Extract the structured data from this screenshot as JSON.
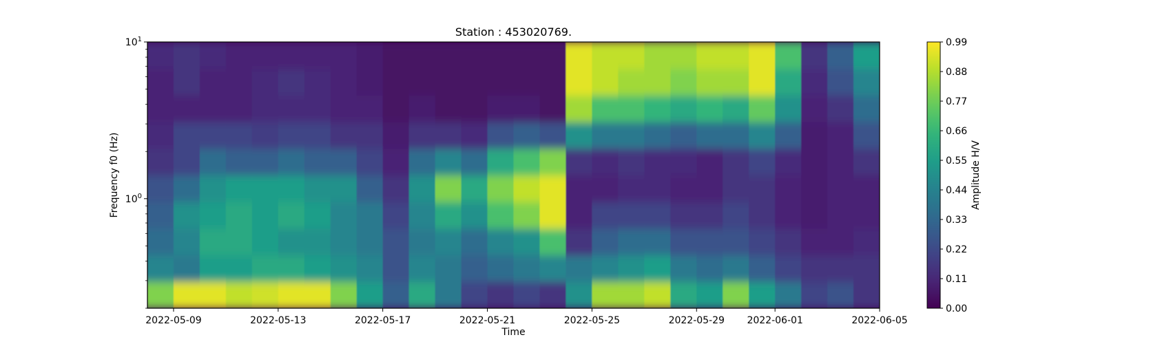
{
  "chart_data": {
    "type": "heatmap",
    "title": "Station : 453020769.",
    "xlabel": "Time",
    "ylabel": "Frequency f0 (Hz)",
    "x_range": [
      "2022-05-08",
      "2022-06-05"
    ],
    "y_scale": "log",
    "y_range_hz": [
      0.2,
      10
    ],
    "y_ticks": [
      {
        "value": 1,
        "base": "10",
        "exp": "0"
      },
      {
        "value": 10,
        "base": "10",
        "exp": "1"
      }
    ],
    "x_ticks": [
      "2022-05-09",
      "2022-05-13",
      "2022-05-17",
      "2022-05-21",
      "2022-05-25",
      "2022-05-29",
      "2022-06-01",
      "2022-06-05"
    ],
    "colormap": "viridis",
    "colorbar": {
      "label": "Amplitude H/V",
      "range": [
        0,
        0.99
      ],
      "ticks": [
        "0.00",
        "0.11",
        "0.22",
        "0.33",
        "0.44",
        "0.55",
        "0.66",
        "0.77",
        "0.88",
        "0.99"
      ]
    },
    "z_profiles": [
      {
        "date": "2022-05-08",
        "z": [
          0.8,
          0.45,
          0.35,
          0.3,
          0.25,
          0.15,
          0.12,
          0.1,
          0.1,
          0.12
        ]
      },
      {
        "date": "2022-05-09",
        "z": [
          0.95,
          0.4,
          0.45,
          0.5,
          0.35,
          0.2,
          0.2,
          0.1,
          0.15,
          0.15
        ]
      },
      {
        "date": "2022-05-10",
        "z": [
          0.95,
          0.55,
          0.6,
          0.55,
          0.5,
          0.35,
          0.2,
          0.1,
          0.1,
          0.12
        ]
      },
      {
        "date": "2022-05-11",
        "z": [
          0.9,
          0.55,
          0.6,
          0.6,
          0.55,
          0.3,
          0.2,
          0.1,
          0.1,
          0.1
        ]
      },
      {
        "date": "2022-05-12",
        "z": [
          0.92,
          0.6,
          0.55,
          0.55,
          0.55,
          0.3,
          0.18,
          0.12,
          0.12,
          0.1
        ]
      },
      {
        "date": "2022-05-13",
        "z": [
          0.95,
          0.6,
          0.5,
          0.6,
          0.55,
          0.35,
          0.2,
          0.12,
          0.15,
          0.1
        ]
      },
      {
        "date": "2022-05-14",
        "z": [
          0.95,
          0.55,
          0.5,
          0.55,
          0.5,
          0.3,
          0.2,
          0.12,
          0.12,
          0.1
        ]
      },
      {
        "date": "2022-05-15",
        "z": [
          0.8,
          0.5,
          0.45,
          0.45,
          0.5,
          0.3,
          0.15,
          0.1,
          0.1,
          0.1
        ]
      },
      {
        "date": "2022-05-16",
        "z": [
          0.55,
          0.45,
          0.4,
          0.4,
          0.3,
          0.2,
          0.15,
          0.1,
          0.08,
          0.08
        ]
      },
      {
        "date": "2022-05-17",
        "z": [
          0.3,
          0.25,
          0.25,
          0.2,
          0.15,
          0.1,
          0.08,
          0.05,
          0.05,
          0.05
        ]
      },
      {
        "date": "2022-05-18",
        "z": [
          0.6,
          0.45,
          0.4,
          0.45,
          0.5,
          0.35,
          0.15,
          0.08,
          0.05,
          0.05
        ]
      },
      {
        "date": "2022-05-19",
        "z": [
          0.4,
          0.4,
          0.45,
          0.6,
          0.8,
          0.45,
          0.15,
          0.05,
          0.05,
          0.05
        ]
      },
      {
        "date": "2022-05-20",
        "z": [
          0.2,
          0.3,
          0.35,
          0.5,
          0.6,
          0.35,
          0.12,
          0.05,
          0.05,
          0.05
        ]
      },
      {
        "date": "2022-05-21",
        "z": [
          0.15,
          0.35,
          0.45,
          0.7,
          0.8,
          0.6,
          0.25,
          0.08,
          0.05,
          0.05
        ]
      },
      {
        "date": "2022-05-22",
        "z": [
          0.2,
          0.4,
          0.5,
          0.8,
          0.9,
          0.7,
          0.3,
          0.08,
          0.05,
          0.05
        ]
      },
      {
        "date": "2022-05-23",
        "z": [
          0.15,
          0.45,
          0.7,
          0.95,
          0.95,
          0.8,
          0.25,
          0.05,
          0.05,
          0.05
        ]
      },
      {
        "date": "2022-05-24",
        "z": [
          0.5,
          0.4,
          0.15,
          0.1,
          0.1,
          0.15,
          0.5,
          0.85,
          0.95,
          0.95
        ]
      },
      {
        "date": "2022-05-25",
        "z": [
          0.85,
          0.45,
          0.3,
          0.2,
          0.1,
          0.12,
          0.4,
          0.7,
          0.9,
          0.9
        ]
      },
      {
        "date": "2022-05-26",
        "z": [
          0.85,
          0.5,
          0.35,
          0.2,
          0.12,
          0.15,
          0.4,
          0.7,
          0.85,
          0.9
        ]
      },
      {
        "date": "2022-05-27",
        "z": [
          0.9,
          0.55,
          0.35,
          0.2,
          0.12,
          0.12,
          0.35,
          0.65,
          0.85,
          0.85
        ]
      },
      {
        "date": "2022-05-28",
        "z": [
          0.6,
          0.4,
          0.25,
          0.15,
          0.1,
          0.12,
          0.3,
          0.6,
          0.8,
          0.85
        ]
      },
      {
        "date": "2022-05-29",
        "z": [
          0.55,
          0.35,
          0.25,
          0.15,
          0.1,
          0.1,
          0.35,
          0.65,
          0.85,
          0.9
        ]
      },
      {
        "date": "2022-05-30",
        "z": [
          0.8,
          0.4,
          0.25,
          0.2,
          0.15,
          0.15,
          0.35,
          0.6,
          0.85,
          0.9
        ]
      },
      {
        "date": "2022-05-31",
        "z": [
          0.55,
          0.3,
          0.2,
          0.15,
          0.15,
          0.2,
          0.45,
          0.75,
          0.95,
          0.95
        ]
      },
      {
        "date": "2022-06-01",
        "z": [
          0.4,
          0.2,
          0.15,
          0.1,
          0.1,
          0.12,
          0.3,
          0.5,
          0.6,
          0.7
        ]
      },
      {
        "date": "2022-06-02",
        "z": [
          0.2,
          0.15,
          0.1,
          0.08,
          0.08,
          0.08,
          0.08,
          0.1,
          0.12,
          0.15
        ]
      },
      {
        "date": "2022-06-03",
        "z": [
          0.25,
          0.15,
          0.1,
          0.1,
          0.1,
          0.1,
          0.1,
          0.15,
          0.25,
          0.3
        ]
      },
      {
        "date": "2022-06-04",
        "z": [
          0.15,
          0.15,
          0.12,
          0.1,
          0.1,
          0.15,
          0.25,
          0.35,
          0.45,
          0.55
        ]
      }
    ]
  }
}
